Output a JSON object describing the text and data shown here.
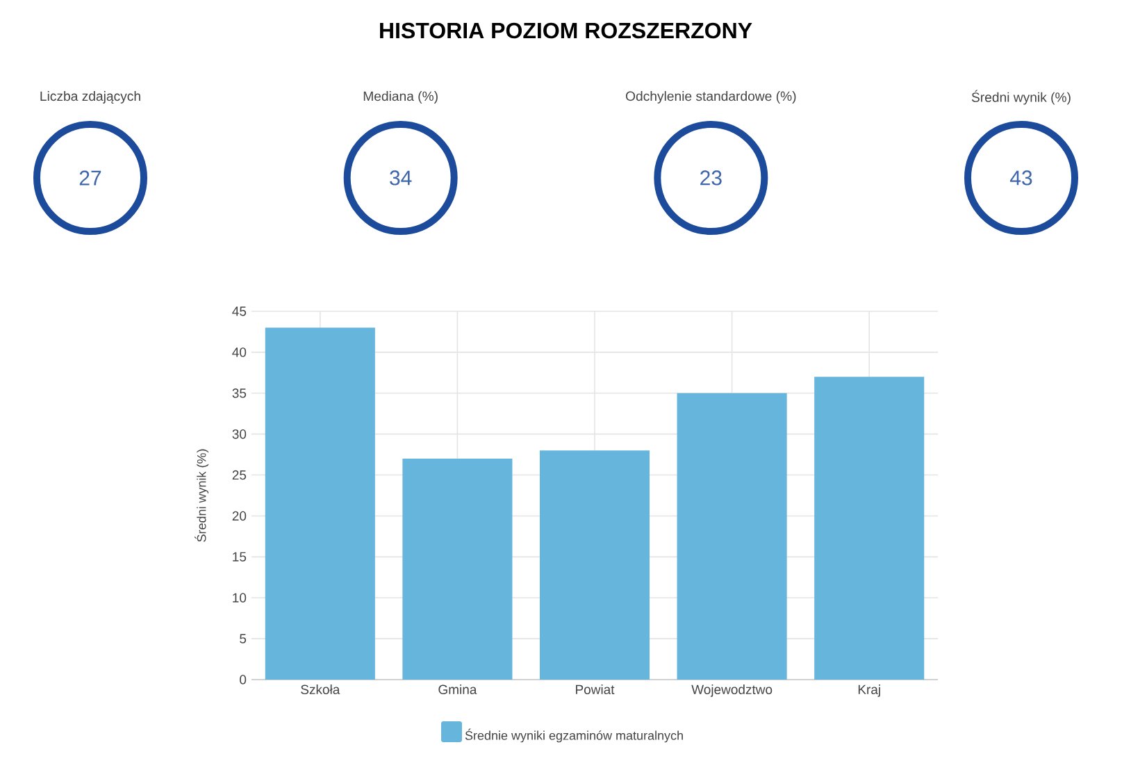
{
  "chart_data": [
    {
      "type": "other",
      "title": "HISTORIA POZIOM ROZSZERZONY",
      "categories": [
        "Liczba zdających",
        "Mediana (%)",
        "Odchylenie standardowe (%)",
        "Średni wynik (%)"
      ],
      "values": [
        27,
        34,
        23,
        43
      ],
      "data_labels": true,
      "color": "#1d4b9b"
    },
    {
      "type": "bar",
      "categories": [
        "Szkoła",
        "Gmina",
        "Powiat",
        "Wojewodztwo",
        "Kraj"
      ],
      "series": [
        {
          "name": "Średnie wyniki egzaminów maturalnych",
          "color": "#66b5dc",
          "values": [
            43,
            27,
            28,
            35,
            37
          ]
        }
      ],
      "ylabel": "Średni wynik (%)",
      "ylim": [
        0,
        45
      ],
      "yticks": [
        0,
        5,
        10,
        15,
        20,
        25,
        30,
        35,
        40,
        45
      ],
      "grid": true,
      "legend": "bottom"
    }
  ]
}
